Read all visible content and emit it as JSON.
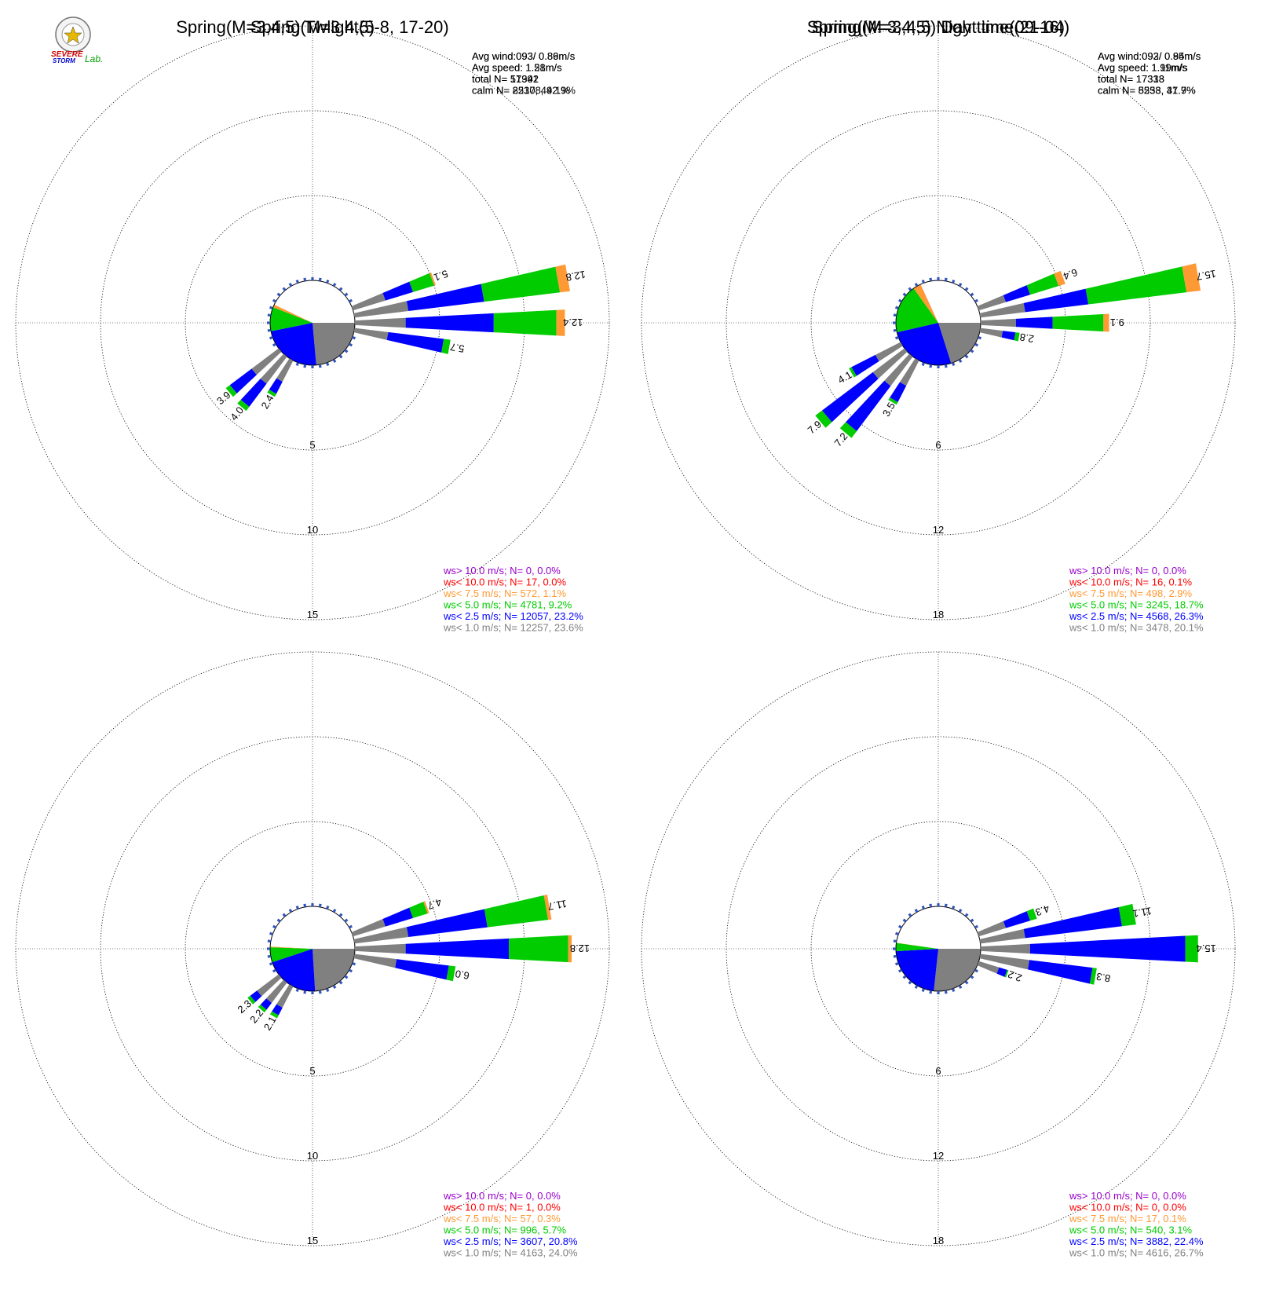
{
  "logo": {
    "text_line1": "SEVERE",
    "text_line2": "STORM",
    "text_lab": "Lab."
  },
  "colors": {
    "calm": "#808080",
    "lt1": "#808080",
    "lt2_5": "#0000ff",
    "lt5": "#00cc00",
    "lt7_5": "#ff9933",
    "lt10": "#ff0000",
    "gt10": "#9900cc",
    "calm_sector": "#ffffff"
  },
  "chart_data": [
    {
      "type": "windrose",
      "title": "Spring(M=3,4,5)",
      "stats": [
        "Avg wind:093/ 0.89m/s",
        "Avg speed: 1.51m/s",
        "total N=      51992",
        "calm N=  22308,  42.9%"
      ],
      "ring_labels": [
        "5",
        "10",
        "15"
      ],
      "ring_values": [
        5,
        10,
        15
      ],
      "pie": [
        23.6,
        23.2,
        9.2,
        1.1,
        0.0,
        0.0,
        42.9
      ],
      "directions": [
        {
          "deg": 70,
          "total": 5.1,
          "parts": [
            2.0,
            1.7,
            1.3,
            0.1
          ]
        },
        {
          "deg": 80,
          "total": 12.8,
          "parts": [
            3.2,
            4.5,
            4.5,
            0.6
          ]
        },
        {
          "deg": 90,
          "total": 12.4,
          "parts": [
            3.0,
            5.2,
            3.7,
            0.5
          ]
        },
        {
          "deg": 100,
          "total": 5.7,
          "parts": [
            2.0,
            3.3,
            0.4,
            0
          ]
        },
        {
          "deg": 210,
          "total": 2.4,
          "parts": [
            1.4,
            0.8,
            0.2,
            0
          ]
        },
        {
          "deg": 220,
          "total": 4.0,
          "parts": [
            2.0,
            1.7,
            0.3,
            0
          ]
        },
        {
          "deg": 230,
          "total": 3.9,
          "parts": [
            2.0,
            1.6,
            0.3,
            0
          ]
        }
      ],
      "legend": [
        {
          "label": "ws> 10.0 m/s; N=     0,  0.0%",
          "color": "#9900cc"
        },
        {
          "label": "ws< 10.0 m/s; N=    17,  0.0%",
          "color": "#ff0000"
        },
        {
          "label": "ws<  7.5 m/s; N=   572,  1.1%",
          "color": "#ff9933"
        },
        {
          "label": "ws<  5.0 m/s; N=  4781,  9.2%",
          "color": "#00cc00"
        },
        {
          "label": "ws<  2.5 m/s; N= 12057, 23.2%",
          "color": "#0000ff"
        },
        {
          "label": "ws<  1.0 m/s; N= 12257, 23.6%",
          "color": "#808080"
        }
      ]
    },
    {
      "type": "windrose",
      "title": "Spring(M=3,4,5) Day time(09-16)",
      "stats": [
        "Avg wind:092/ 0.95m/s",
        "Avg speed: 1.99m/s",
        "total N=      17338",
        "calm N=   5533,  31.9%"
      ],
      "ring_labels": [
        "6",
        "12",
        "18"
      ],
      "ring_values": [
        6,
        12,
        18
      ],
      "pie": [
        20.1,
        26.3,
        18.7,
        2.9,
        0.1,
        0.0,
        31.9
      ],
      "directions": [
        {
          "deg": 70,
          "total": 6.4,
          "parts": [
            2.0,
            1.8,
            2.1,
            0.5
          ]
        },
        {
          "deg": 80,
          "total": 15.7,
          "parts": [
            3.2,
            4.5,
            7.0,
            1.0
          ]
        },
        {
          "deg": 90,
          "total": 9.1,
          "parts": [
            2.5,
            2.6,
            3.6,
            0.4
          ]
        },
        {
          "deg": 100,
          "total": 2.8,
          "parts": [
            1.6,
            0.9,
            0.3,
            0
          ]
        },
        {
          "deg": 210,
          "total": 3.5,
          "parts": [
            2.0,
            1.3,
            0.2,
            0
          ]
        },
        {
          "deg": 220,
          "total": 7.2,
          "parts": [
            2.6,
            4.0,
            0.6,
            0
          ]
        },
        {
          "deg": 230,
          "total": 7.9,
          "parts": [
            2.8,
            4.5,
            0.6,
            0
          ]
        },
        {
          "deg": 240,
          "total": 4.1,
          "parts": [
            2.0,
            1.9,
            0.2,
            0
          ]
        }
      ],
      "legend": [
        {
          "label": "ws> 10.0 m/s; N=     0,  0.0%",
          "color": "#9900cc"
        },
        {
          "label": "ws< 10.0 m/s; N=    16,  0.1%",
          "color": "#ff0000"
        },
        {
          "label": "ws<  7.5 m/s; N=   498,  2.9%",
          "color": "#ff9933"
        },
        {
          "label": "ws<  5.0 m/s; N=  3245, 18.7%",
          "color": "#00cc00"
        },
        {
          "label": "ws<  2.5 m/s; N=  4568, 26.3%",
          "color": "#0000ff"
        },
        {
          "label": "ws<  1.0 m/s; N=  3478, 20.1%",
          "color": "#808080"
        }
      ]
    },
    {
      "type": "windrose",
      "title": "Spring(M=3,4,5) Twlight(5-8, 17-20)",
      "stats": [
        "Avg wind:093/ 0.86m/s",
        "Avg speed: 1.28m/s",
        "total N=      17341",
        "calm N=   8517,  49.1%"
      ],
      "ring_labels": [
        "5",
        "10",
        "15"
      ],
      "ring_values": [
        5,
        10,
        15
      ],
      "pie": [
        24.0,
        20.8,
        5.7,
        0.3,
        0.0,
        0.0,
        49.1
      ],
      "directions": [
        {
          "deg": 70,
          "total": 4.7,
          "parts": [
            2.0,
            1.7,
            0.9,
            0.1
          ]
        },
        {
          "deg": 80,
          "total": 11.7,
          "parts": [
            3.2,
            4.7,
            3.6,
            0.2
          ]
        },
        {
          "deg": 90,
          "total": 12.8,
          "parts": [
            3.0,
            6.1,
            3.5,
            0.2
          ]
        },
        {
          "deg": 100,
          "total": 6.0,
          "parts": [
            2.5,
            3.1,
            0.4,
            0
          ]
        },
        {
          "deg": 210,
          "total": 2.1,
          "parts": [
            1.4,
            0.5,
            0.2,
            0
          ]
        },
        {
          "deg": 220,
          "total": 2.2,
          "parts": [
            1.5,
            0.5,
            0.2,
            0
          ]
        },
        {
          "deg": 230,
          "total": 2.3,
          "parts": [
            1.6,
            0.5,
            0.2,
            0
          ]
        }
      ],
      "legend": [
        {
          "label": "ws> 10.0 m/s; N=     0,  0.0%",
          "color": "#9900cc"
        },
        {
          "label": "ws< 10.0 m/s; N=     1,  0.0%",
          "color": "#ff0000"
        },
        {
          "label": "ws<  7.5 m/s; N=    57,  0.3%",
          "color": "#ff9933"
        },
        {
          "label": "ws<  5.0 m/s; N=   996,  5.7%",
          "color": "#00cc00"
        },
        {
          "label": "ws<  2.5 m/s; N=  3607, 20.8%",
          "color": "#0000ff"
        },
        {
          "label": "ws<  1.0 m/s; N=  4163, 24.0%",
          "color": "#808080"
        }
      ]
    },
    {
      "type": "windrose",
      "title": "Spring(M=3,4,5) Night time(21-04)",
      "stats": [
        "Avg wind:093/ 0.84m/s",
        "Avg speed: 1.11m/s",
        "total N=      17313",
        "calm N=   8258,  47.7%"
      ],
      "ring_labels": [
        "6",
        "12",
        "18"
      ],
      "ring_values": [
        6,
        12,
        18
      ],
      "pie": [
        26.7,
        22.4,
        3.1,
        0.1,
        0.0,
        0.0,
        47.7
      ],
      "directions": [
        {
          "deg": 70,
          "total": 4.3,
          "parts": [
            2.0,
            1.8,
            0.5,
            0
          ]
        },
        {
          "deg": 80,
          "total": 11.1,
          "parts": [
            3.2,
            6.9,
            1.0,
            0
          ]
        },
        {
          "deg": 90,
          "total": 15.4,
          "parts": [
            3.5,
            11.0,
            0.9,
            0
          ]
        },
        {
          "deg": 100,
          "total": 8.3,
          "parts": [
            3.5,
            4.5,
            0.3,
            0
          ]
        },
        {
          "deg": 110,
          "total": 2.2,
          "parts": [
            1.5,
            0.6,
            0.1,
            0
          ]
        }
      ],
      "legend": [
        {
          "label": "ws> 10.0 m/s; N=     0,  0.0%",
          "color": "#9900cc"
        },
        {
          "label": "ws< 10.0 m/s; N=     0,  0.0%",
          "color": "#ff0000"
        },
        {
          "label": "ws<  7.5 m/s; N=    17,  0.1%",
          "color": "#ff9933"
        },
        {
          "label": "ws<  5.0 m/s; N=   540,  3.1%",
          "color": "#00cc00"
        },
        {
          "label": "ws<  2.5 m/s; N=  3882, 22.4%",
          "color": "#0000ff"
        },
        {
          "label": "ws<  1.0 m/s; N=  4616, 26.7%",
          "color": "#808080"
        }
      ]
    }
  ]
}
